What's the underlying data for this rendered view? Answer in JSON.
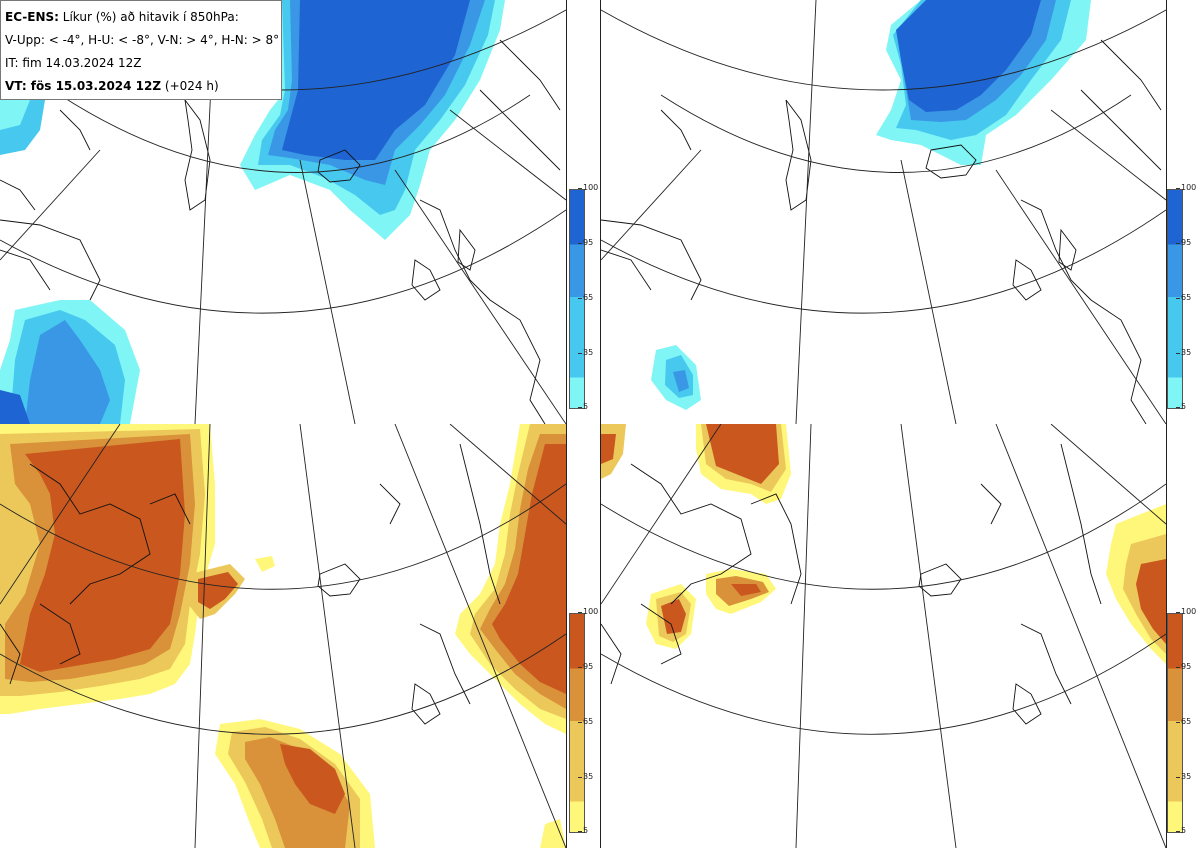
{
  "legend": {
    "line1_bold": "EC-ENS:",
    "line1_rest": " Líkur (%) að hitavik í 850hPa:",
    "line2": "V-Upp: < -4°, H-U: < -8°, V-N: > 4°, H-N: > 8°",
    "line3": "IT: fim 14.03.2024 12Z",
    "line4_bold": "VT: fös 15.03.2024 12Z",
    "line4_rest": " (+024 h)"
  },
  "colorbar_ticks": [
    "5",
    "35",
    "65",
    "95",
    "100"
  ],
  "colors": {
    "cold_scale": [
      "#7ff5f5",
      "#46c8ef",
      "#3a97e6",
      "#1e64d2"
    ],
    "warm_scale": [
      "#fff77a",
      "#ecc85a",
      "#d9913a",
      "#c9571e"
    ],
    "coast": "#111111",
    "grid": "#222222"
  }
}
